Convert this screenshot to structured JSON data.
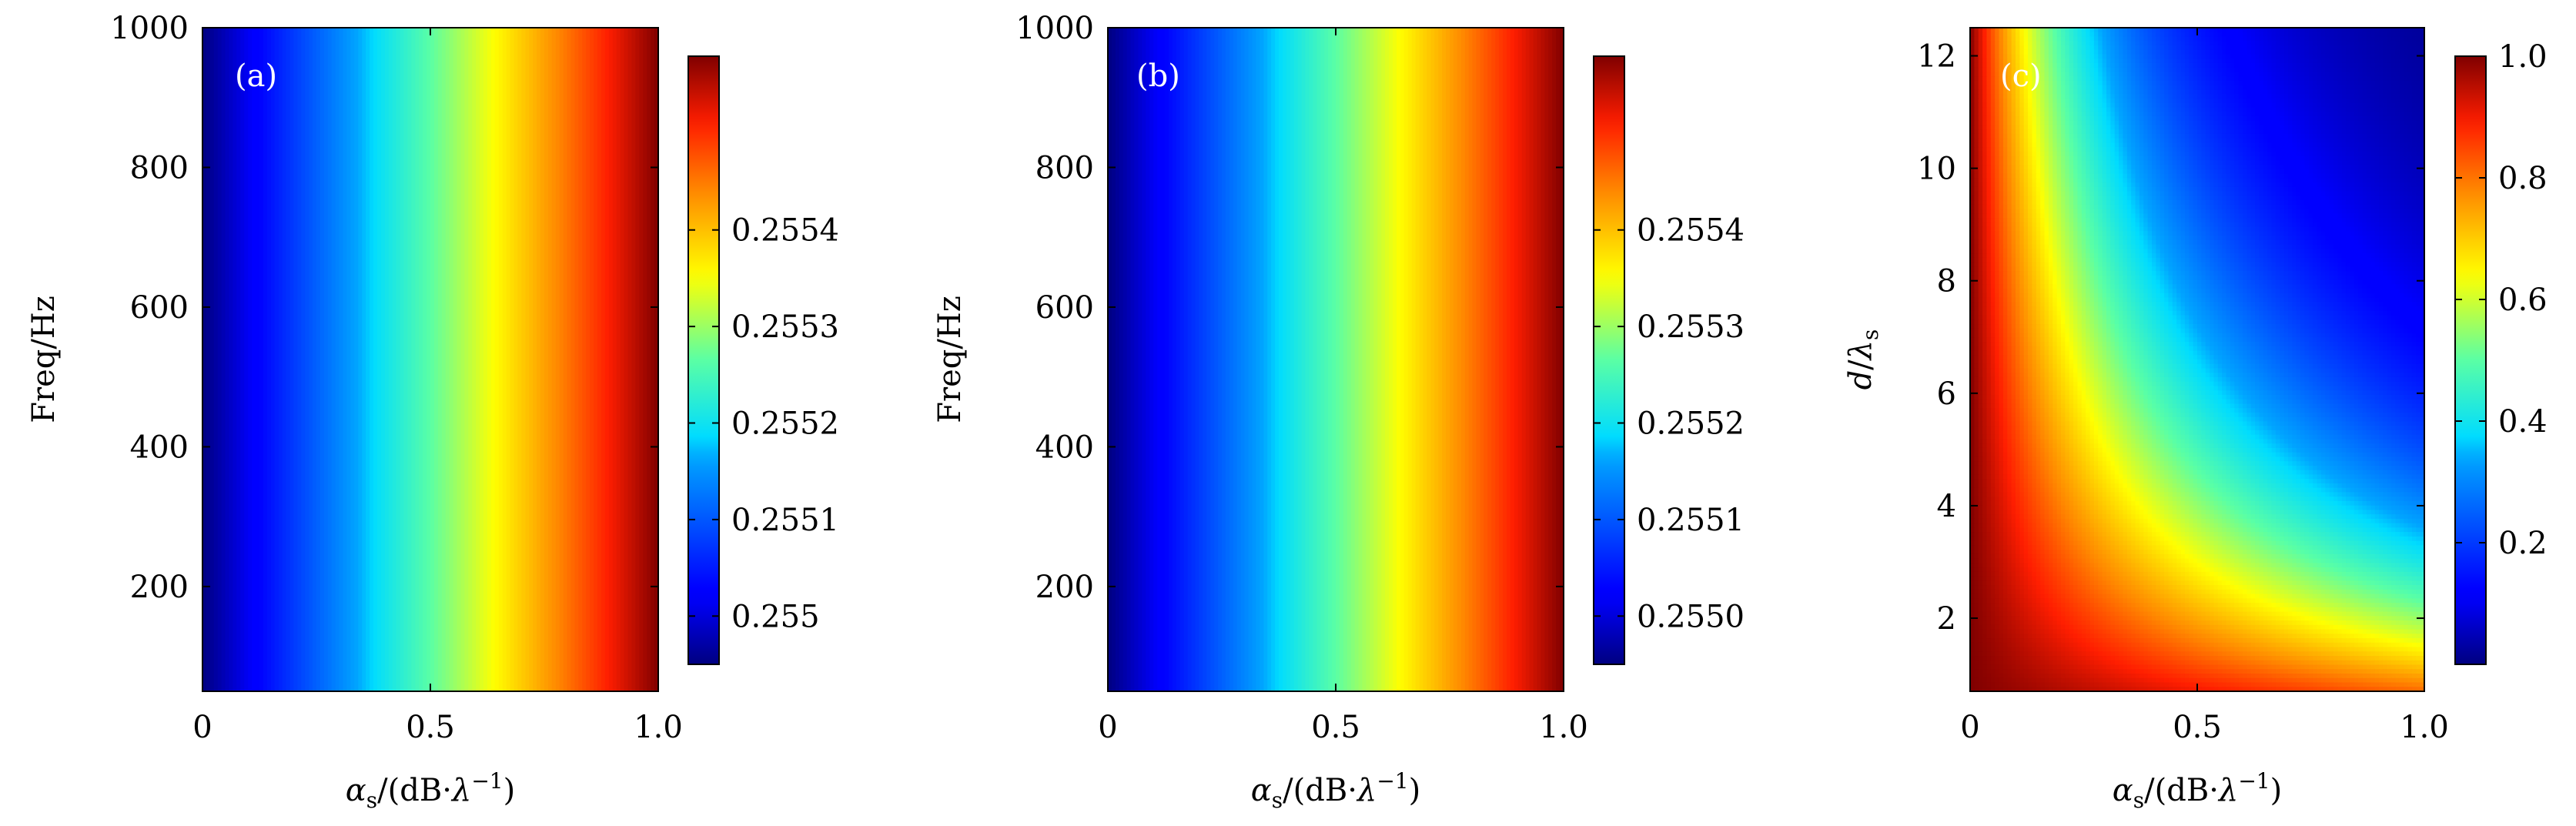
{
  "chart_data": [
    {
      "type": "heatmap",
      "panel_label": "(a)",
      "xlabel": "αs/(dB·λ−1)",
      "ylabel": "Freq/Hz",
      "xlim": [
        0,
        1.0
      ],
      "ylim": [
        50,
        1000
      ],
      "x_ticks": [
        0,
        0.5,
        1.0
      ],
      "x_tick_labels": [
        "0",
        "0.5",
        "1.0"
      ],
      "y_ticks": [
        200,
        400,
        600,
        800,
        1000
      ],
      "y_tick_labels": [
        "200",
        "400",
        "600",
        "800",
        "1000"
      ],
      "colormap": "jet",
      "field": "depends on x only, increasing linearly across the range",
      "colorbar": {
        "range": [
          0.25495,
          0.25558
        ],
        "ticks": [
          0.255,
          0.2551,
          0.2552,
          0.2553,
          0.2554
        ],
        "tick_labels": [
          "0.255",
          "0.2551",
          "0.2552",
          "0.2553",
          "0.2554"
        ]
      }
    },
    {
      "type": "heatmap",
      "panel_label": "(b)",
      "xlabel": "αs/(dB·λ−1)",
      "ylabel": "Freq/Hz",
      "xlim": [
        0,
        1.0
      ],
      "ylim": [
        50,
        1000
      ],
      "x_ticks": [
        0,
        0.5,
        1.0
      ],
      "x_tick_labels": [
        "0",
        "0.5",
        "1.0"
      ],
      "y_ticks": [
        200,
        400,
        600,
        800,
        1000
      ],
      "y_tick_labels": [
        "200",
        "400",
        "600",
        "800",
        "1000"
      ],
      "colormap": "jet",
      "field": "depends on x only, increasing linearly across the range",
      "colorbar": {
        "range": [
          0.25495,
          0.25558
        ],
        "ticks": [
          0.255,
          0.2551,
          0.2552,
          0.2553,
          0.2554
        ],
        "tick_labels": [
          "0.2550",
          "0.2551",
          "0.2552",
          "0.2553",
          "0.2554"
        ]
      }
    },
    {
      "type": "heatmap",
      "panel_label": "(c)",
      "xlabel": "αs/(dB·λ−1)",
      "ylabel": "d/λs",
      "xlim": [
        0,
        1.0
      ],
      "ylim": [
        0.7,
        12.5
      ],
      "x_ticks": [
        0,
        0.5,
        1.0
      ],
      "x_tick_labels": [
        "0",
        "0.5",
        "1.0"
      ],
      "y_ticks": [
        2,
        4,
        6,
        8,
        10,
        12
      ],
      "y_tick_labels": [
        "2",
        "4",
        "6",
        "8",
        "10",
        "12"
      ],
      "colormap": "jet",
      "field": "exp(-0.3 * alpha * d)",
      "colorbar": {
        "range": [
          0,
          1.0
        ],
        "ticks": [
          0.2,
          0.4,
          0.6,
          0.8,
          1.0
        ],
        "tick_labels": [
          "0.2",
          "0.4",
          "0.6",
          "0.8",
          "1.0"
        ]
      }
    }
  ]
}
